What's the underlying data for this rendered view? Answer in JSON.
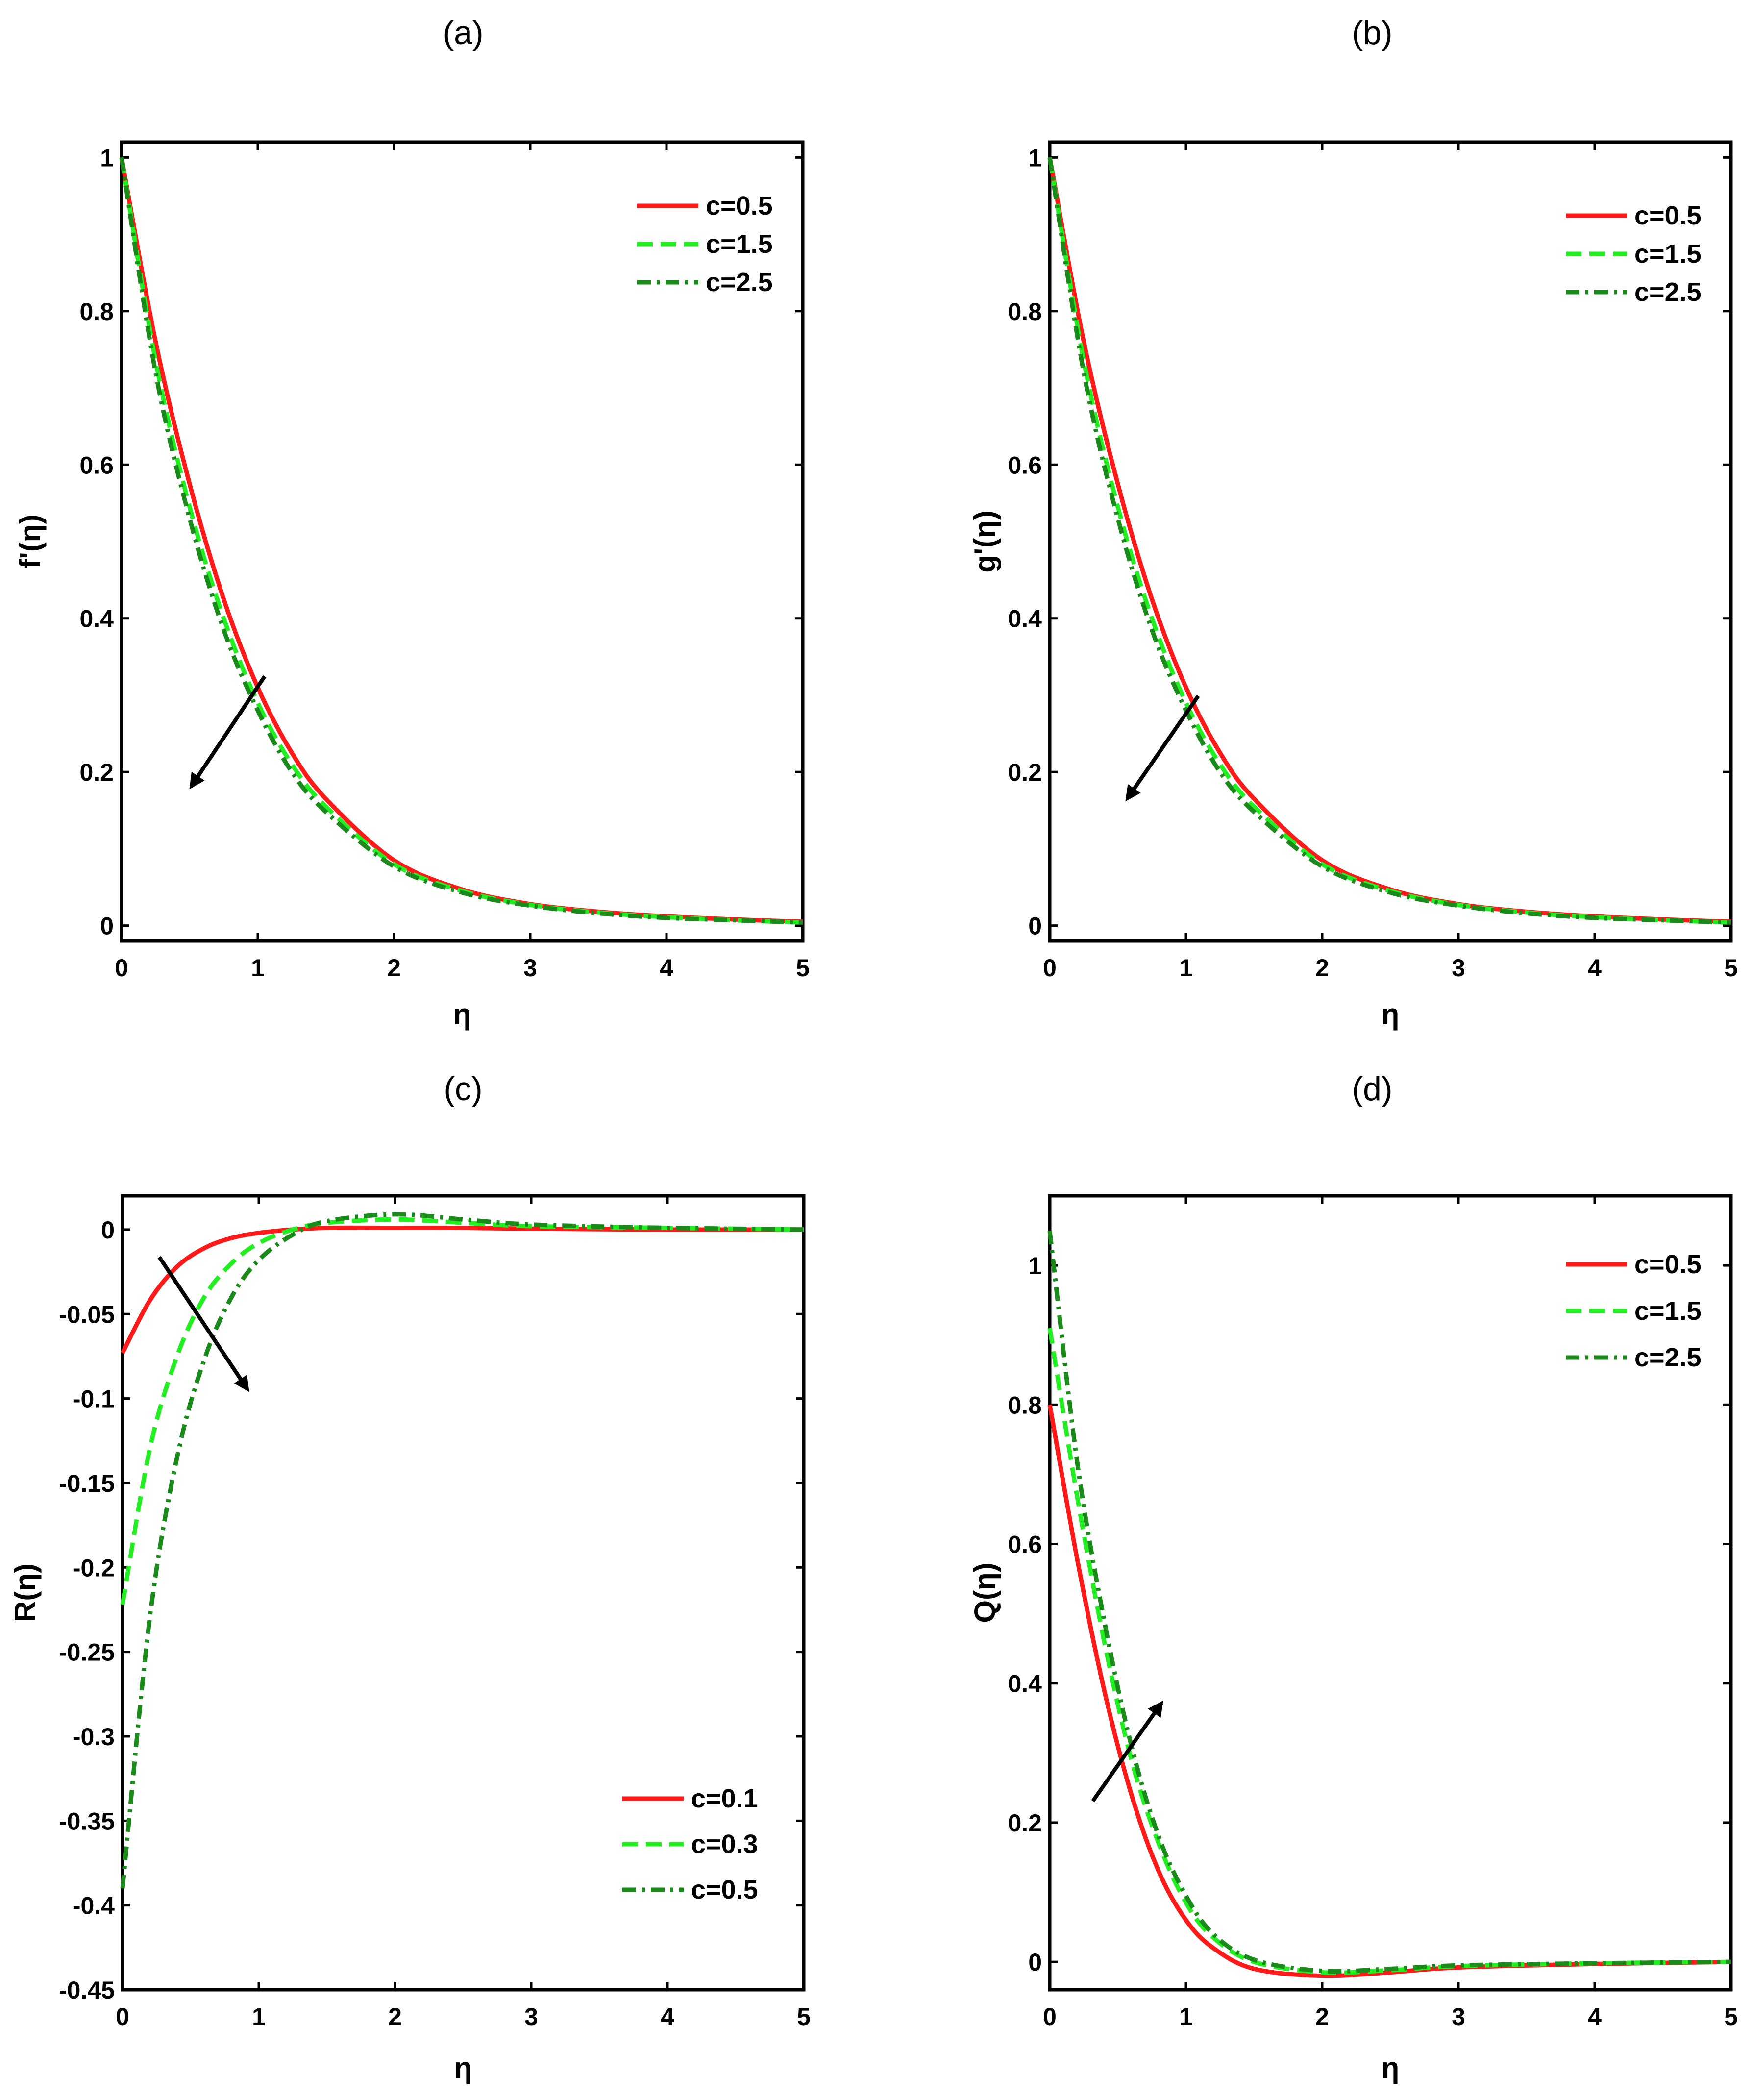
{
  "colors": {
    "red": "#ff1a1a",
    "light_green": "#22ee22",
    "dark_green": "#1a8a1a",
    "frame": "#000000",
    "arrow": "#000000"
  },
  "chart_data": [
    {
      "type": "line",
      "caption": "(a)",
      "xlabel": "η",
      "ylabel": "f'(η)",
      "xlim": [
        0,
        5
      ],
      "ylim": [
        -0.02,
        1.02
      ],
      "xticks": [
        "0",
        "1",
        "2",
        "3",
        "4",
        "5"
      ],
      "yticks": [
        "0",
        "0.2",
        "0.4",
        "0.6",
        "0.8",
        "1"
      ],
      "legend_position": "top-right",
      "arrow_direction": "down-left",
      "series": [
        {
          "name": "c=0.5",
          "style": "solid",
          "color": "#ff1a1a",
          "x": [
            0,
            0.25,
            0.5,
            0.75,
            1,
            1.25,
            1.5,
            2,
            2.5,
            3,
            3.5,
            4,
            4.5,
            5
          ],
          "y": [
            1,
            0.76,
            0.575,
            0.425,
            0.31,
            0.225,
            0.165,
            0.085,
            0.047,
            0.028,
            0.018,
            0.012,
            0.008,
            0.005
          ]
        },
        {
          "name": "c=1.5",
          "style": "dash",
          "color": "#22ee22",
          "x": [
            0,
            0.25,
            0.5,
            0.75,
            1,
            1.25,
            1.5,
            2,
            2.5,
            3,
            3.5,
            4,
            4.5,
            5
          ],
          "y": [
            1,
            0.735,
            0.545,
            0.4,
            0.29,
            0.21,
            0.155,
            0.08,
            0.045,
            0.027,
            0.017,
            0.011,
            0.007,
            0.004
          ]
        },
        {
          "name": "c=2.5",
          "style": "dashdot",
          "color": "#1a8a1a",
          "x": [
            0,
            0.25,
            0.5,
            0.75,
            1,
            1.25,
            1.5,
            2,
            2.5,
            3,
            3.5,
            4,
            4.5,
            5
          ],
          "y": [
            1,
            0.72,
            0.53,
            0.385,
            0.28,
            0.2,
            0.148,
            0.077,
            0.043,
            0.026,
            0.016,
            0.01,
            0.007,
            0.004
          ]
        }
      ]
    },
    {
      "type": "line",
      "caption": "(b)",
      "xlabel": "η",
      "ylabel": "g'(η)",
      "xlim": [
        0,
        5
      ],
      "ylim": [
        -0.02,
        1.02
      ],
      "xticks": [
        "0",
        "1",
        "2",
        "3",
        "4",
        "5"
      ],
      "yticks": [
        "0",
        "0.2",
        "0.4",
        "0.6",
        "0.8",
        "1"
      ],
      "legend_position": "top-right",
      "arrow_direction": "down-left",
      "series": [
        {
          "name": "c=0.5",
          "style": "solid",
          "color": "#ff1a1a",
          "x": [
            0,
            0.25,
            0.5,
            0.75,
            1,
            1.25,
            1.5,
            2,
            2.5,
            3,
            3.5,
            4,
            4.5,
            5
          ],
          "y": [
            1,
            0.76,
            0.575,
            0.425,
            0.31,
            0.225,
            0.165,
            0.085,
            0.047,
            0.028,
            0.018,
            0.012,
            0.008,
            0.005
          ]
        },
        {
          "name": "c=1.5",
          "style": "dash",
          "color": "#22ee22",
          "x": [
            0,
            0.25,
            0.5,
            0.75,
            1,
            1.25,
            1.5,
            2,
            2.5,
            3,
            3.5,
            4,
            4.5,
            5
          ],
          "y": [
            1,
            0.735,
            0.545,
            0.4,
            0.29,
            0.21,
            0.155,
            0.08,
            0.045,
            0.027,
            0.017,
            0.011,
            0.007,
            0.004
          ]
        },
        {
          "name": "c=2.5",
          "style": "dashdot",
          "color": "#1a8a1a",
          "x": [
            0,
            0.25,
            0.5,
            0.75,
            1,
            1.25,
            1.5,
            2,
            2.5,
            3,
            3.5,
            4,
            4.5,
            5
          ],
          "y": [
            1,
            0.72,
            0.53,
            0.385,
            0.28,
            0.2,
            0.148,
            0.077,
            0.043,
            0.026,
            0.016,
            0.01,
            0.007,
            0.004
          ]
        }
      ]
    },
    {
      "type": "line",
      "caption": "(c)",
      "xlabel": "η",
      "ylabel": "R(η)",
      "xlim": [
        0,
        5
      ],
      "ylim": [
        -0.45,
        0.02
      ],
      "xticks": [
        "0",
        "1",
        "2",
        "3",
        "4",
        "5"
      ],
      "yticks": [
        "-0.45",
        "-0.4",
        "-0.35",
        "-0.3",
        "-0.25",
        "-0.2",
        "-0.15",
        "-0.1",
        "-0.05",
        "0"
      ],
      "legend_position": "bottom-right",
      "arrow_direction": "down-right",
      "series": [
        {
          "name": "c=0.1",
          "style": "solid",
          "color": "#ff1a1a",
          "x": [
            0,
            0.2,
            0.4,
            0.6,
            0.8,
            1,
            1.25,
            1.5,
            2,
            2.5,
            3,
            4,
            5
          ],
          "y": [
            -0.073,
            -0.042,
            -0.022,
            -0.011,
            -0.005,
            -0.002,
            0,
            0.001,
            0.001,
            0.001,
            0.0005,
            0,
            0
          ]
        },
        {
          "name": "c=0.3",
          "style": "dash",
          "color": "#22ee22",
          "x": [
            0,
            0.2,
            0.4,
            0.6,
            0.8,
            1,
            1.25,
            1.5,
            2,
            2.5,
            3,
            4,
            5
          ],
          "y": [
            -0.222,
            -0.13,
            -0.075,
            -0.04,
            -0.02,
            -0.008,
            0,
            0.004,
            0.006,
            0.004,
            0.002,
            0.001,
            0
          ]
        },
        {
          "name": "c=0.5",
          "style": "dashdot",
          "color": "#1a8a1a",
          "x": [
            0,
            0.2,
            0.4,
            0.6,
            0.8,
            1,
            1.25,
            1.5,
            2,
            2.5,
            3,
            4,
            5
          ],
          "y": [
            -0.39,
            -0.23,
            -0.135,
            -0.077,
            -0.04,
            -0.018,
            -0.003,
            0.005,
            0.009,
            0.006,
            0.003,
            0.001,
            0
          ]
        }
      ]
    },
    {
      "type": "line",
      "caption": "(d)",
      "xlabel": "η",
      "ylabel": "Q(η)",
      "xlim": [
        0,
        5
      ],
      "ylim": [
        -0.04,
        1.1
      ],
      "xticks": [
        "0",
        "1",
        "2",
        "3",
        "4",
        "5"
      ],
      "yticks": [
        "0",
        "0.2",
        "0.4",
        "0.6",
        "0.8",
        "1"
      ],
      "legend_position": "top-right",
      "arrow_direction": "up-right",
      "series": [
        {
          "name": "c=0.5",
          "style": "solid",
          "color": "#ff1a1a",
          "x": [
            0,
            0.2,
            0.4,
            0.6,
            0.8,
            1,
            1.2,
            1.5,
            2,
            2.5,
            3,
            4,
            5
          ],
          "y": [
            0.8,
            0.58,
            0.39,
            0.24,
            0.13,
            0.06,
            0.02,
            -0.01,
            -0.02,
            -0.015,
            -0.008,
            -0.003,
            0
          ]
        },
        {
          "name": "c=1.5",
          "style": "dash",
          "color": "#22ee22",
          "x": [
            0,
            0.2,
            0.4,
            0.6,
            0.8,
            1,
            1.2,
            1.5,
            2,
            2.5,
            3,
            4,
            5
          ],
          "y": [
            0.91,
            0.67,
            0.46,
            0.29,
            0.17,
            0.085,
            0.035,
            0,
            -0.015,
            -0.012,
            -0.006,
            -0.002,
            0
          ]
        },
        {
          "name": "c=2.5",
          "style": "dashdot",
          "color": "#1a8a1a",
          "x": [
            0,
            0.2,
            0.4,
            0.6,
            0.8,
            1,
            1.2,
            1.5,
            2,
            2.5,
            3,
            4,
            5
          ],
          "y": [
            1.05,
            0.72,
            0.49,
            0.31,
            0.18,
            0.095,
            0.04,
            0.003,
            -0.013,
            -0.01,
            -0.005,
            -0.002,
            0
          ]
        }
      ]
    }
  ]
}
